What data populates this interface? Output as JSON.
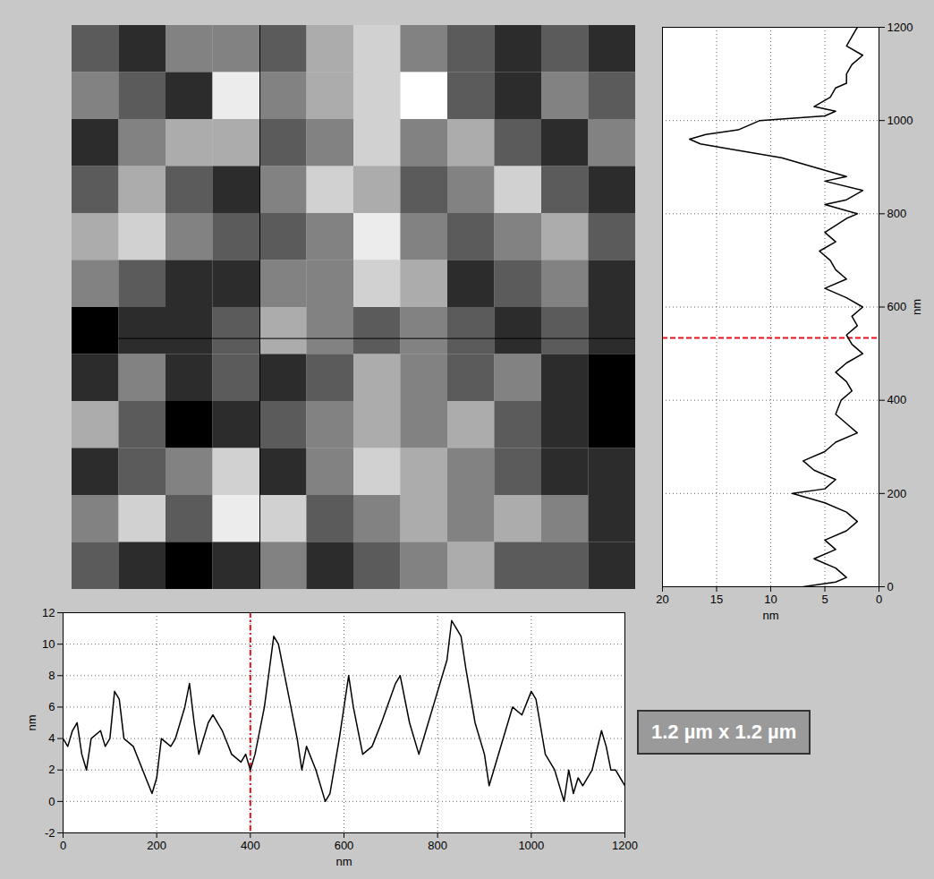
{
  "chart_data": [
    {
      "type": "heatmap",
      "annotation": "1.2 µm x 1.2 µm",
      "xlim": [
        0,
        1200
      ],
      "ylim": [
        0,
        1200
      ],
      "tick_labels": false,
      "cursor": {
        "x": 400,
        "y": 534
      },
      "cells": [
        [
          5,
          4,
          6,
          6,
          5,
          7,
          8,
          6,
          5,
          4,
          5,
          4
        ],
        [
          6,
          5,
          4,
          9,
          6,
          7,
          8,
          10,
          5,
          4,
          6,
          5
        ],
        [
          4,
          6,
          7,
          7,
          5,
          6,
          8,
          6,
          7,
          5,
          4,
          6
        ],
        [
          5,
          7,
          5,
          4,
          6,
          8,
          7,
          5,
          6,
          8,
          5,
          4
        ],
        [
          7,
          8,
          6,
          5,
          5,
          6,
          9,
          6,
          5,
          6,
          7,
          5
        ],
        [
          6,
          5,
          4,
          4,
          6,
          6,
          8,
          7,
          4,
          5,
          6,
          4
        ],
        [
          3,
          4,
          4,
          5,
          7,
          6,
          5,
          6,
          5,
          4,
          5,
          4
        ],
        [
          4,
          6,
          4,
          5,
          4,
          5,
          7,
          6,
          5,
          6,
          4,
          3
        ],
        [
          7,
          5,
          3,
          4,
          5,
          6,
          7,
          6,
          7,
          5,
          4,
          3
        ],
        [
          4,
          5,
          6,
          8,
          4,
          6,
          8,
          7,
          6,
          5,
          4,
          4
        ],
        [
          6,
          8,
          5,
          9,
          8,
          5,
          6,
          7,
          6,
          7,
          6,
          4
        ],
        [
          5,
          4,
          3,
          4,
          6,
          4,
          5,
          6,
          7,
          5,
          5,
          4
        ]
      ]
    },
    {
      "type": "line",
      "xlabel": "nm",
      "ylabel": "nm",
      "xlim": [
        0,
        1200
      ],
      "ylim": [
        -2,
        12
      ],
      "xticks": [
        0,
        200,
        400,
        600,
        800,
        1000,
        1200
      ],
      "yticks": [
        -2,
        0,
        2,
        4,
        6,
        8,
        10,
        12
      ],
      "grid": true,
      "color": "#000000",
      "cursor": 400,
      "x": [
        0,
        10,
        20,
        30,
        40,
        50,
        60,
        80,
        90,
        100,
        110,
        120,
        130,
        150,
        170,
        190,
        200,
        210,
        230,
        240,
        260,
        270,
        280,
        290,
        310,
        320,
        340,
        360,
        380,
        390,
        400,
        410,
        430,
        450,
        460,
        480,
        500,
        510,
        520,
        540,
        560,
        570,
        590,
        610,
        620,
        640,
        660,
        680,
        710,
        720,
        740,
        760,
        780,
        800,
        820,
        830,
        850,
        860,
        880,
        900,
        910,
        920,
        940,
        960,
        980,
        1000,
        1010,
        1030,
        1050,
        1070,
        1080,
        1090,
        1100,
        1110,
        1130,
        1150,
        1160,
        1170,
        1180,
        1190,
        1200
      ],
      "values": [
        4,
        3.5,
        4.5,
        5,
        3,
        2,
        4,
        4.5,
        3.5,
        4,
        7,
        6.5,
        4,
        3.5,
        2,
        0.5,
        1.5,
        4,
        3.5,
        4,
        6,
        7.5,
        5,
        3,
        5,
        5.5,
        4.5,
        3,
        2.5,
        3,
        2,
        3,
        6,
        10.5,
        10,
        7,
        4,
        2,
        3.5,
        2,
        0,
        0.5,
        4,
        8,
        6,
        3,
        3.5,
        5,
        7.5,
        8,
        5,
        3,
        5,
        7,
        9,
        11.5,
        10.5,
        8.5,
        5,
        3,
        1,
        2,
        4,
        6,
        5.5,
        7,
        6.5,
        3,
        2,
        0,
        2,
        0.5,
        1.5,
        1,
        2,
        4.5,
        3.5,
        2,
        2,
        1.5,
        1
      ]
    },
    {
      "type": "line",
      "orientation": "horizontal",
      "xlabel": "nm",
      "ylabel": "nm",
      "xlim": [
        0,
        1200
      ],
      "ylim": [
        20,
        0
      ],
      "xticks": [
        0,
        200,
        400,
        600,
        800,
        1000,
        1200
      ],
      "yticks": [
        20,
        15,
        10,
        5,
        0
      ],
      "grid": true,
      "color": "#000000",
      "cursor": 534,
      "x": [
        0,
        10,
        20,
        40,
        60,
        80,
        100,
        120,
        140,
        160,
        180,
        200,
        210,
        230,
        250,
        270,
        290,
        310,
        330,
        350,
        370,
        400,
        420,
        440,
        460,
        480,
        500,
        520,
        540,
        560,
        580,
        600,
        620,
        640,
        660,
        680,
        700,
        720,
        740,
        760,
        790,
        800,
        820,
        830,
        850,
        870,
        880,
        900,
        920,
        940,
        950,
        960,
        970,
        980,
        990,
        1000,
        1010,
        1020,
        1030,
        1050,
        1070,
        1080,
        1100,
        1120,
        1140,
        1160,
        1180,
        1200
      ],
      "values": [
        7,
        4,
        3,
        4,
        6,
        4,
        5,
        3,
        2,
        3,
        5,
        8,
        5,
        4,
        6,
        7,
        5,
        4,
        2,
        3,
        4,
        3.5,
        2.5,
        3,
        4,
        3,
        1.5,
        2.5,
        3,
        2,
        2.5,
        1.5,
        3,
        5,
        3,
        4,
        4.5,
        5.5,
        4,
        5,
        3,
        2,
        5,
        3,
        1.5,
        5,
        3,
        6,
        9,
        14,
        16.5,
        17.5,
        16,
        13,
        12,
        11,
        5,
        4,
        6,
        4.5,
        4,
        3,
        3,
        2.5,
        1.5,
        3,
        2.5,
        2
      ]
    }
  ]
}
